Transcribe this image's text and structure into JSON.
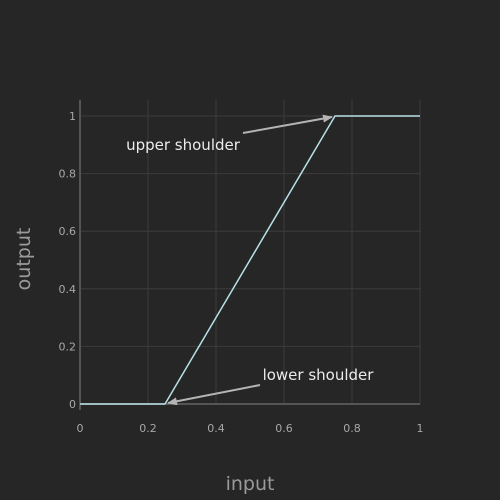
{
  "chart_data": {
    "type": "line",
    "title": "",
    "xlabel": "input",
    "ylabel": "output",
    "xlim": [
      0,
      1
    ],
    "ylim": [
      0,
      1
    ],
    "x_ticks": [
      0,
      0.2,
      0.4,
      0.6,
      0.8,
      1
    ],
    "x_tick_labels": [
      "0",
      "0.2",
      "0.4",
      "0.6",
      "0.8",
      "1"
    ],
    "y_ticks": [
      0,
      0.2,
      0.4,
      0.6,
      0.8,
      1
    ],
    "y_tick_labels": [
      "0",
      "0.2",
      "0.4",
      "0.6",
      "0.8",
      "1"
    ],
    "grid": true,
    "legend": "none",
    "series": [
      {
        "x": [
          0,
          0.25,
          0.75,
          1
        ],
        "y": [
          0,
          0,
          1,
          1
        ],
        "color": "#b8e0e8"
      }
    ],
    "annotations": [
      {
        "text": "upper shoulder",
        "x": 0.75,
        "y": 1
      },
      {
        "text": "lower shoulder",
        "x": 0.25,
        "y": 0
      }
    ]
  },
  "colors": {
    "background": "#262626",
    "grid": "#3c3c3c",
    "axis": "#555555",
    "line": "#b8e0e8",
    "arrow": "#b4b4b4",
    "annotation_text": "#ececec"
  }
}
